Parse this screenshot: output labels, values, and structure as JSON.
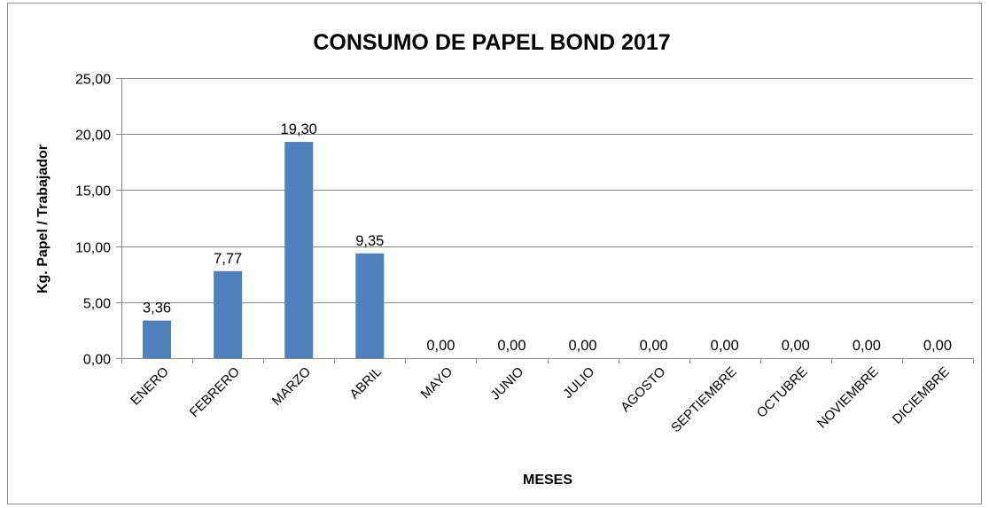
{
  "chart_data": {
    "type": "bar",
    "title": "CONSUMO DE PAPEL BOND 2017",
    "xlabel": "MESES",
    "ylabel": "Kg. Papel / Trabajador",
    "categories": [
      "ENERO",
      "FEBRERO",
      "MARZO",
      "ABRIL",
      "MAYO",
      "JUNIO",
      "JULIO",
      "AGOSTO",
      "SEPTIEMBRE",
      "OCTUBRE",
      "NOVIEMBRE",
      "DICIEMBRE"
    ],
    "values": [
      3.36,
      7.77,
      19.3,
      9.35,
      0,
      0,
      0,
      0,
      0,
      0,
      0,
      0
    ],
    "value_labels": [
      "3,36",
      "7,77",
      "19,30",
      "9,35",
      "0,00",
      "0,00",
      "0,00",
      "0,00",
      "0,00",
      "0,00",
      "0,00",
      "0,00"
    ],
    "ylim": [
      0,
      25
    ],
    "yticks": [
      0,
      5,
      10,
      15,
      20,
      25
    ],
    "ytick_labels": [
      "0,00",
      "5,00",
      "10,00",
      "15,00",
      "20,00",
      "25,00"
    ],
    "grid": true,
    "legend": "none",
    "bar_color": "#4f81bd",
    "grid_color": "#868686"
  }
}
